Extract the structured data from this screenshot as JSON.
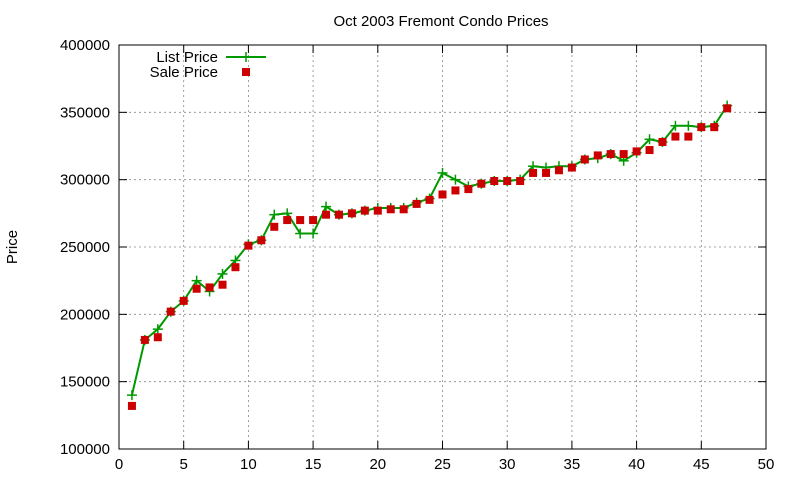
{
  "chart_data": {
    "type": "line",
    "title": "Oct 2003 Fremont Condo Prices",
    "xlabel": "",
    "ylabel": "Price",
    "xlim": [
      0,
      50
    ],
    "ylim": [
      100000,
      400000
    ],
    "x_ticks": [
      0,
      5,
      10,
      15,
      20,
      25,
      30,
      35,
      40,
      45,
      50
    ],
    "y_ticks": [
      100000,
      150000,
      200000,
      250000,
      300000,
      350000,
      400000
    ],
    "grid": true,
    "legend_position": "top-left",
    "series": [
      {
        "name": "List Price",
        "style": "line+cross",
        "color": "#009900",
        "x": [
          1,
          2,
          3,
          4,
          5,
          6,
          7,
          8,
          9,
          10,
          11,
          12,
          13,
          14,
          15,
          16,
          17,
          18,
          19,
          20,
          21,
          22,
          23,
          24,
          25,
          26,
          27,
          28,
          29,
          30,
          31,
          32,
          33,
          34,
          35,
          36,
          37,
          38,
          39,
          40,
          41,
          42,
          43,
          44,
          45,
          46,
          47
        ],
        "y": [
          140000,
          181000,
          189000,
          202000,
          210000,
          225000,
          217000,
          230000,
          240000,
          252000,
          255000,
          274000,
          275000,
          260000,
          260000,
          280000,
          274000,
          275000,
          277000,
          279000,
          279000,
          279000,
          283000,
          286000,
          305000,
          300000,
          295000,
          297000,
          299000,
          299000,
          300000,
          310000,
          309000,
          310000,
          310000,
          315000,
          316000,
          319000,
          314000,
          320000,
          330000,
          328000,
          340000,
          340000,
          339000,
          340000,
          355000
        ]
      },
      {
        "name": "Sale Price",
        "style": "square",
        "color": "#cc0000",
        "x": [
          1,
          2,
          3,
          4,
          5,
          6,
          7,
          8,
          9,
          10,
          11,
          12,
          13,
          14,
          15,
          16,
          17,
          18,
          19,
          20,
          21,
          22,
          23,
          24,
          25,
          26,
          27,
          28,
          29,
          30,
          31,
          32,
          33,
          34,
          35,
          36,
          37,
          38,
          39,
          40,
          41,
          42,
          43,
          44,
          45,
          46,
          47
        ],
        "y": [
          132000,
          181000,
          183000,
          202000,
          210000,
          219000,
          220000,
          222000,
          235000,
          251000,
          255000,
          265000,
          270000,
          270000,
          270000,
          274000,
          274000,
          275000,
          277000,
          277000,
          278000,
          278000,
          282000,
          285000,
          289000,
          292000,
          293000,
          297000,
          299000,
          299000,
          299000,
          305000,
          305000,
          307000,
          309000,
          315000,
          318000,
          319000,
          319000,
          321000,
          322000,
          328000,
          332000,
          332000,
          339000,
          339000,
          353000
        ]
      }
    ]
  }
}
